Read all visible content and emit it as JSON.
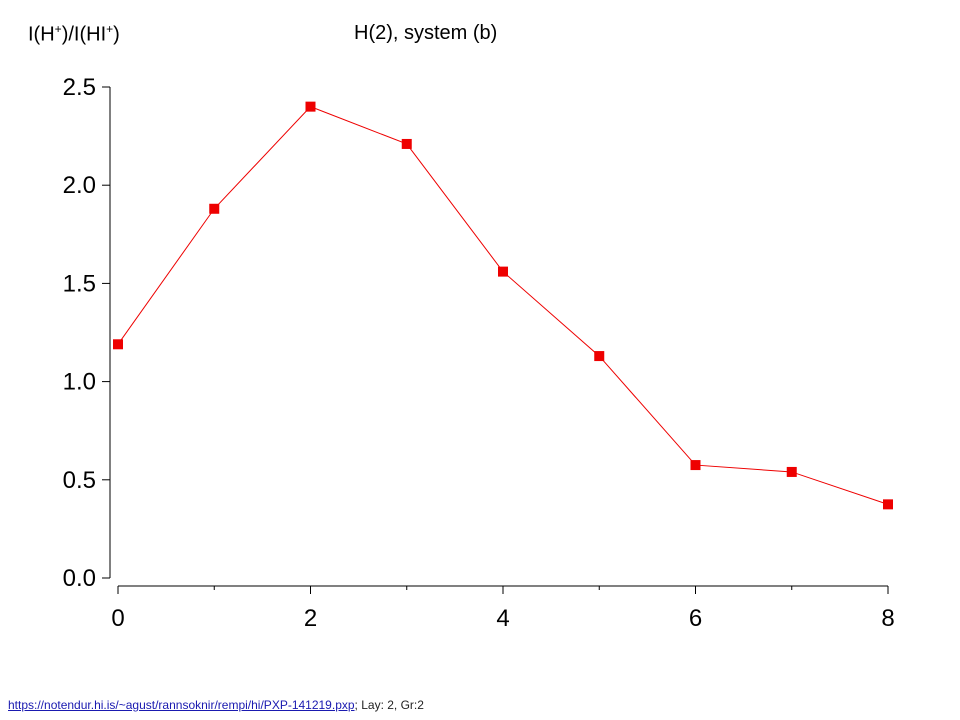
{
  "chart_data": {
    "type": "line",
    "title": "H(2), system (b)",
    "ylabel_parts": [
      "I(H",
      "+",
      ")/I(HI",
      "+",
      ")"
    ],
    "xlabel": "",
    "xlim": [
      0,
      8
    ],
    "ylim": [
      0.0,
      2.5
    ],
    "xticks": [
      "0",
      "2",
      "4",
      "6",
      "8"
    ],
    "yticks": [
      "0.0",
      "0.5",
      "1.0",
      "1.5",
      "2.0",
      "2.5"
    ],
    "grid": false,
    "series": [
      {
        "color": "#ee0000",
        "marker": "square",
        "x": [
          0,
          1,
          2,
          3,
          4,
          5,
          6,
          7,
          8
        ],
        "y": [
          1.19,
          1.88,
          2.4,
          2.21,
          1.56,
          1.13,
          0.575,
          0.54,
          0.375
        ]
      }
    ]
  },
  "footer": {
    "link_text": "https://notendur.hi.is/~agust/rannsoknir/rempi/hi/PXP-141219.pxp",
    "suffix": ";  Lay: 2, Gr:2"
  }
}
